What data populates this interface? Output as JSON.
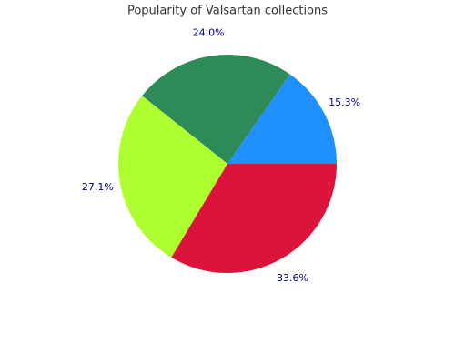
{
  "chart_data": {
    "type": "pie",
    "title": "Popularity of Valsartan collections",
    "values": [
      15.3,
      24.0,
      27.1,
      33.6
    ],
    "value_labels": [
      "15.3%",
      "24.0%",
      "27.1%",
      "33.6%"
    ],
    "colors": [
      "#1e90ff",
      "#2e8b57",
      "#adff2f",
      "#dc143c"
    ]
  }
}
